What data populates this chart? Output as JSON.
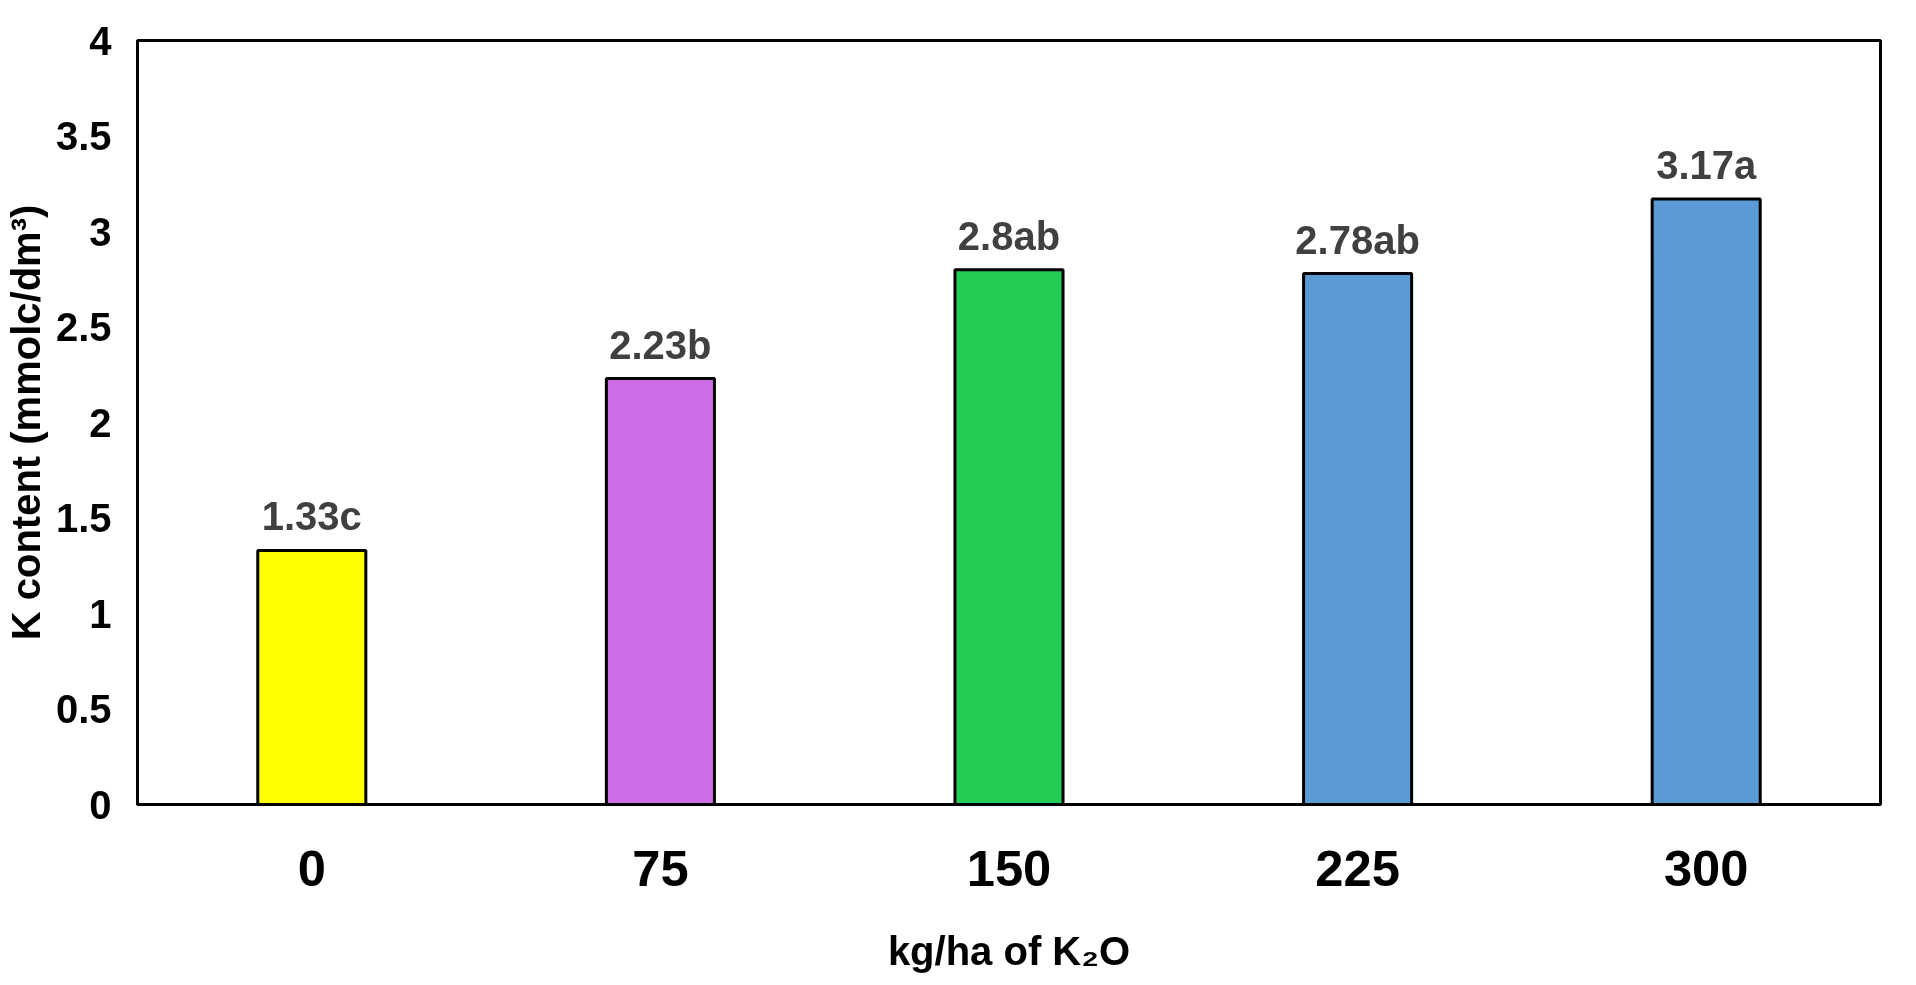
{
  "chart_data": {
    "type": "bar",
    "xlabel": "kg/ha of K₂O",
    "ylabel": "K content (mmolc/dm³)",
    "categories": [
      "0",
      "75",
      "150",
      "225",
      "300"
    ],
    "values": [
      1.33,
      2.23,
      2.8,
      2.78,
      3.17
    ],
    "colors": [
      "#ffff00",
      "#cf6de6",
      "#22cc55",
      "#5b9bd5",
      "#5b9bd5"
    ],
    "value_labels": [
      "1.33c",
      "2.23b",
      "2.8ab",
      "2.78ab",
      "3.17a"
    ],
    "ylim": [
      0,
      4
    ],
    "yticks": [
      0,
      0.5,
      1,
      1.5,
      2,
      2.5,
      3,
      3.5,
      4
    ],
    "grid": false
  }
}
